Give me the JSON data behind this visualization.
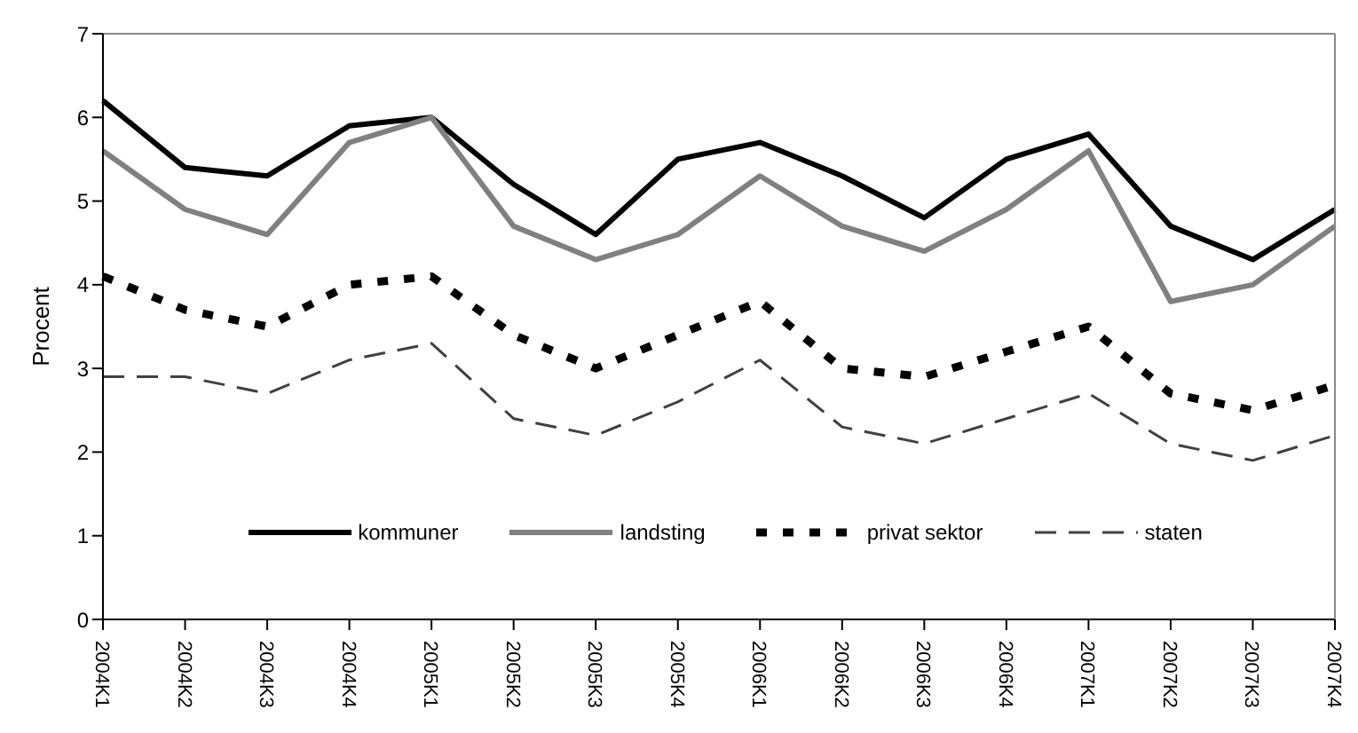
{
  "chart_data": {
    "type": "line",
    "ylabel": "Procent",
    "categories": [
      "2004K1",
      "2004K2",
      "2004K3",
      "2004K4",
      "2005K1",
      "2005K2",
      "2005K3",
      "2005K4",
      "2006K1",
      "2006K2",
      "2006K3",
      "2006K4",
      "2007K1",
      "2007K2",
      "2007K3",
      "2007K4"
    ],
    "series": [
      {
        "name": "kommuner",
        "color": "#000000",
        "line_style": "solid",
        "values": [
          6.2,
          5.4,
          5.3,
          5.9,
          6.0,
          5.2,
          4.6,
          5.5,
          5.7,
          5.3,
          4.8,
          5.5,
          5.8,
          4.7,
          4.3,
          4.9
        ]
      },
      {
        "name": "landsting",
        "color": "#808080",
        "line_style": "solid",
        "values": [
          5.6,
          4.9,
          4.6,
          5.7,
          6.0,
          4.7,
          4.3,
          4.6,
          5.3,
          4.7,
          4.4,
          4.9,
          5.6,
          3.8,
          4.0,
          4.7
        ]
      },
      {
        "name": "privat sektor",
        "color": "#000000",
        "line_style": "dotted",
        "values": [
          4.1,
          3.7,
          3.5,
          4.0,
          4.1,
          3.4,
          3.0,
          3.4,
          3.8,
          3.0,
          2.9,
          3.2,
          3.5,
          2.7,
          2.5,
          2.8
        ]
      },
      {
        "name": "staten",
        "color": "#404040",
        "line_style": "dashed",
        "values": [
          2.9,
          2.9,
          2.7,
          3.1,
          3.3,
          2.4,
          2.2,
          2.6,
          3.1,
          2.3,
          2.1,
          2.4,
          2.7,
          2.1,
          1.9,
          2.2
        ]
      }
    ],
    "ylim": [
      0,
      7
    ],
    "yticks": [
      0,
      1,
      2,
      3,
      4,
      5,
      6,
      7
    ],
    "grid": false,
    "legend": "bottom",
    "marker": "none"
  }
}
